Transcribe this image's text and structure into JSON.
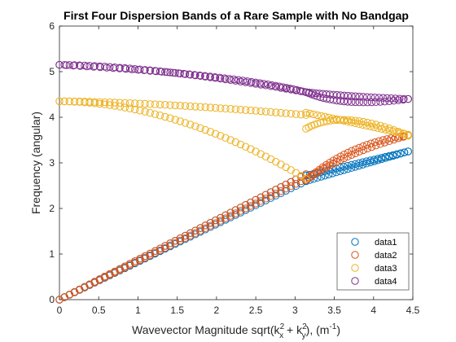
{
  "chart_data": {
    "type": "scatter",
    "title": "First Four Dispersion Bands of a Rare Sample with No Bandgap",
    "xlabel": {
      "prefix": "Wavevector Magnitude sqrt(k",
      "sup1": "2",
      "sub1": "x",
      "mid": " + k",
      "sup2": "2",
      "sub2": "y",
      "after": "), (m",
      "exp": "-1",
      "end": ")"
    },
    "ylabel": "Frequency (angular)",
    "xlim": [
      0,
      4.5
    ],
    "ylim": [
      0,
      6
    ],
    "xticks": [
      "0",
      "0.5",
      "1",
      "1.5",
      "2",
      "2.5",
      "3",
      "3.5",
      "4",
      "4.5"
    ],
    "yticks": [
      "0",
      "1",
      "2",
      "3",
      "4",
      "5",
      "6"
    ],
    "grid": false,
    "legend_position": "bottom-right",
    "marker": "open-circle",
    "series": [
      {
        "name": "data1",
        "color": "#0072BD",
        "segments": [
          {
            "from": [
              0.0,
              0.0
            ],
            "to": [
              3.14,
              2.6
            ],
            "n": 50
          },
          {
            "from": [
              0.0,
              0.0
            ],
            "to": [
              3.14,
              2.75
            ],
            "n": 50
          },
          {
            "from": [
              3.14,
              2.6
            ],
            "to": [
              4.44,
              3.25
            ],
            "n": 28
          },
          {
            "from": [
              3.14,
              2.72
            ],
            "to": [
              4.44,
              3.25
            ],
            "n": 28
          }
        ]
      },
      {
        "name": "data2",
        "color": "#D95319",
        "segments": [
          {
            "from": [
              0.0,
              0.0
            ],
            "to": [
              3.14,
              2.75
            ],
            "n": 50
          },
          {
            "from": [
              0.0,
              0.0
            ],
            "to": [
              3.14,
              2.65
            ],
            "n": 50
          },
          {
            "from": [
              3.14,
              2.62
            ],
            "to": [
              3.6,
              3.2
            ],
            "to2": [
              4.44,
              3.6
            ],
            "n": 28
          },
          {
            "from": [
              3.14,
              2.62
            ],
            "to": [
              3.7,
              3.45
            ],
            "to2": [
              4.44,
              3.6
            ],
            "n": 28
          }
        ]
      },
      {
        "name": "data3",
        "color": "#EDB120",
        "segments": [
          {
            "from": [
              0.0,
              4.35
            ],
            "to": [
              3.14,
              2.65
            ],
            "shape": "falling",
            "n": 50
          },
          {
            "from": [
              0.0,
              4.35
            ],
            "to": [
              3.14,
              4.05
            ],
            "shape": "flat",
            "n": 50
          },
          {
            "from": [
              3.14,
              3.75
            ],
            "to": [
              3.6,
              4.2
            ],
            "to2": [
              4.44,
              3.6
            ],
            "n": 28
          },
          {
            "from": [
              3.14,
              4.1
            ],
            "to": [
              4.44,
              3.62
            ],
            "n": 28
          }
        ]
      },
      {
        "name": "data4",
        "color": "#7E2F8E",
        "segments": [
          {
            "from": [
              0.0,
              5.15
            ],
            "to": [
              3.14,
              4.55
            ],
            "shape": "flat",
            "n": 50
          },
          {
            "from": [
              0.0,
              5.15
            ],
            "to": [
              2.2,
              4.95
            ],
            "to2": [
              3.14,
              4.55
            ],
            "n": 50
          },
          {
            "from": [
              3.14,
              4.55
            ],
            "to": [
              3.6,
              4.2
            ],
            "to2": [
              4.44,
              4.4
            ],
            "n": 28
          },
          {
            "from": [
              3.14,
              4.55
            ],
            "to": [
              3.7,
              4.45
            ],
            "to2": [
              4.44,
              4.4
            ],
            "n": 28
          }
        ]
      }
    ]
  }
}
